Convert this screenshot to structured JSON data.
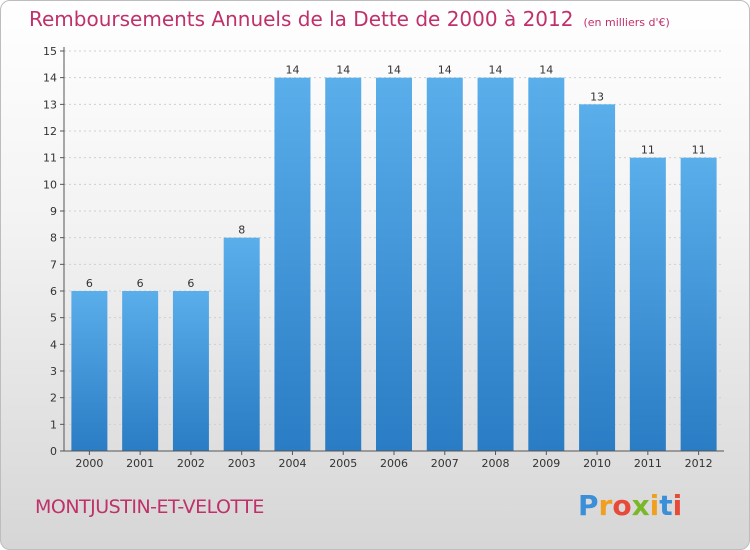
{
  "title": "Remboursements Annuels de la Dette de 2000 à 2012",
  "unit": "(en milliers d'€)",
  "commune": "MONTJUSTIN-ET-VELOTTE",
  "logo": {
    "text": "Proxiti",
    "letters": [
      {
        "ch": "P",
        "color": "#3a8fd8"
      },
      {
        "ch": "r",
        "color": "#f0a020"
      },
      {
        "ch": "o",
        "color": "#e84a3a"
      },
      {
        "ch": "x",
        "color": "#7ab82a"
      },
      {
        "ch": "i",
        "color": "#f0a020"
      },
      {
        "ch": "t",
        "color": "#3a8fd8"
      },
      {
        "ch": "i",
        "color": "#e84a3a"
      }
    ]
  },
  "colors": {
    "bar_top": "#5aaeea",
    "bar_bottom": "#2a7cc4",
    "title": "#c0306a",
    "axis": "#555555",
    "grid": "#cfcfcf",
    "text": "#333333"
  },
  "chart_data": {
    "type": "bar",
    "categories": [
      "2000",
      "2001",
      "2002",
      "2003",
      "2004",
      "2005",
      "2006",
      "2007",
      "2008",
      "2009",
      "2010",
      "2011",
      "2012"
    ],
    "values": [
      6,
      6,
      6,
      8,
      14,
      14,
      14,
      14,
      14,
      14,
      13,
      11,
      11
    ],
    "value_labels": [
      "6",
      "6",
      "6",
      "8",
      "14",
      "14",
      "14",
      "14",
      "14",
      "14",
      "13",
      "11",
      "11"
    ],
    "ylim": [
      0,
      15
    ],
    "yticks": [
      "0",
      "1",
      "2",
      "3",
      "4",
      "5",
      "6",
      "7",
      "8",
      "9",
      "10",
      "11",
      "12",
      "13",
      "14",
      "15"
    ],
    "grid": true,
    "title": "Remboursements Annuels de la Dette de 2000 à 2012",
    "xlabel": "",
    "ylabel": ""
  }
}
